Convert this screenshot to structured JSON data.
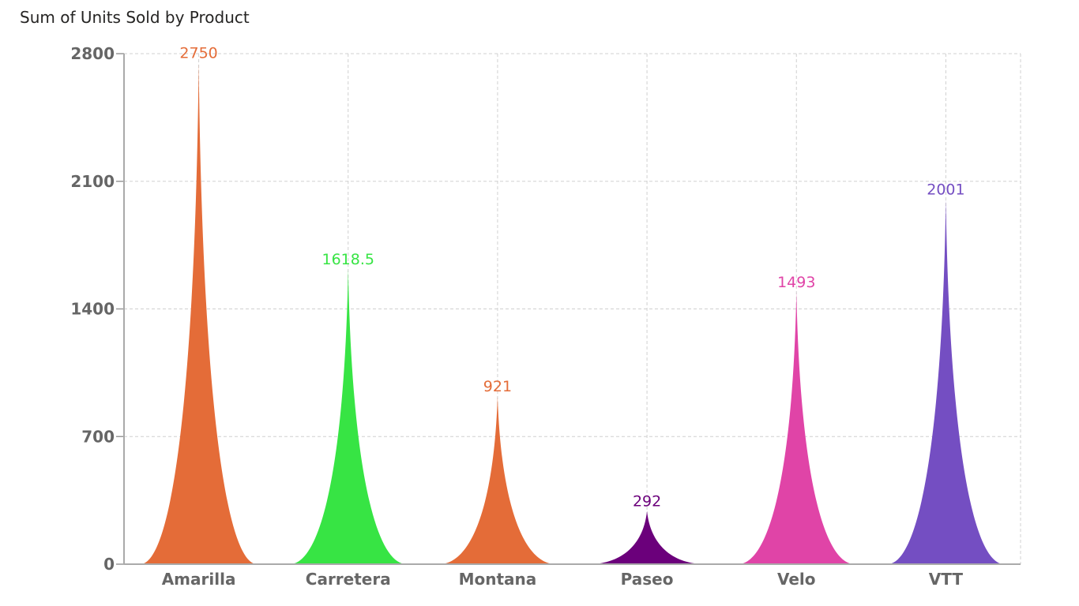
{
  "chart_data": {
    "type": "bar",
    "shape": "spike",
    "title": "Sum of Units Sold by Product",
    "xlabel": "",
    "ylabel": "",
    "ylim": [
      0,
      2800
    ],
    "yticks": [
      "0",
      "700",
      "1400",
      "2100",
      "2800"
    ],
    "grid": true,
    "categories": [
      "Amarilla",
      "Carretera",
      "Montana",
      "Paseo",
      "Velo",
      "VTT"
    ],
    "values": [
      2750,
      1618.5,
      921,
      292,
      1493,
      2001
    ],
    "value_labels": [
      "2750",
      "1618.5",
      "921",
      "292",
      "1493",
      "2001"
    ],
    "colors": [
      "#E46C38",
      "#37E444",
      "#E46C38",
      "#6B007B",
      "#E044A7",
      "#744EC2"
    ]
  }
}
